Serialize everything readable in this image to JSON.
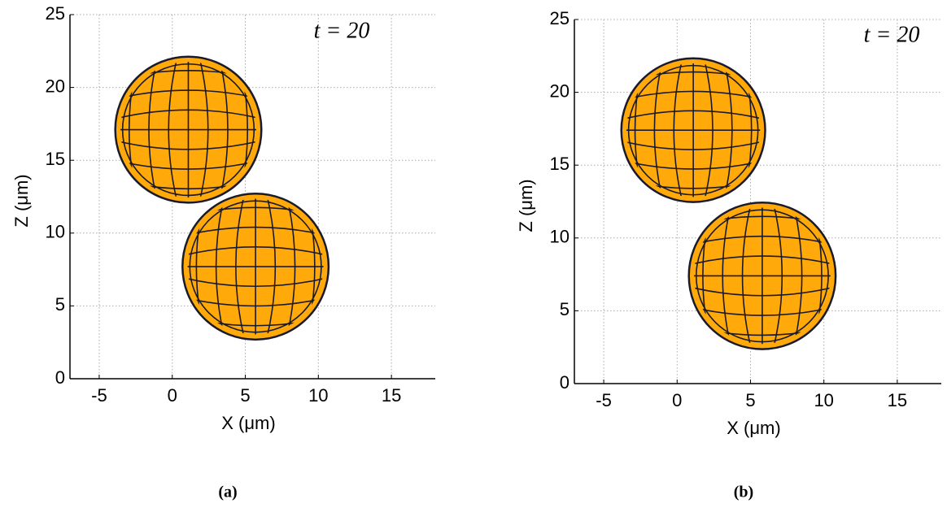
{
  "chart_data": [
    {
      "type": "bubble",
      "annotation": "t = 20",
      "xlabel": "X (μm)",
      "ylabel": "Z (μm)",
      "panel_label": "(a)",
      "x": [
        1.1,
        5.7
      ],
      "values": [
        17.1,
        7.7
      ],
      "sizes": [
        5,
        5
      ],
      "color": "#ffa90a",
      "xlim": [
        -7,
        18
      ],
      "ylim": [
        0,
        25
      ],
      "xticks": [
        -5,
        0,
        5,
        10,
        15
      ],
      "yticks": [
        0,
        5,
        10,
        15,
        20,
        25
      ],
      "grid": true
    },
    {
      "type": "bubble",
      "annotation": "t = 20",
      "xlabel": "X (μm)",
      "ylabel": "Z (μm)",
      "panel_label": "(b)",
      "x": [
        1.1,
        5.8
      ],
      "values": [
        17.4,
        7.4
      ],
      "sizes": [
        4.9,
        5
      ],
      "color": "#ffa90a",
      "xlim": [
        -7,
        18
      ],
      "ylim": [
        0,
        25
      ],
      "xticks": [
        -5,
        0,
        5,
        10,
        15
      ],
      "yticks": [
        0,
        5,
        10,
        15,
        20,
        25
      ],
      "grid": true
    }
  ]
}
